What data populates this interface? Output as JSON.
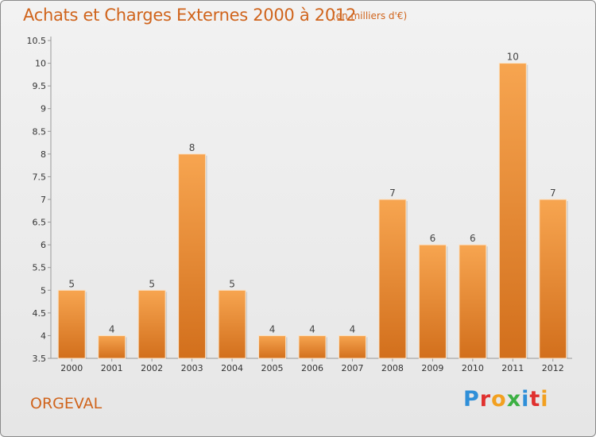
{
  "header": {
    "title": "Achats et Charges Externes 2000 à 2012",
    "subtitle": "(en milliers d'€)"
  },
  "footer": {
    "town": "ORGEVAL",
    "logo_text": "Proxiti",
    "logo_letters": [
      {
        "char": "P",
        "color": "#2f8fd8"
      },
      {
        "char": "r",
        "color": "#e0312f"
      },
      {
        "char": "o",
        "color": "#f2a020"
      },
      {
        "char": "x",
        "color": "#3cb043"
      },
      {
        "char": "i",
        "color": "#2f8fd8"
      },
      {
        "char": "t",
        "color": "#e0312f"
      },
      {
        "char": "i",
        "color": "#f2a020"
      }
    ]
  },
  "colors": {
    "bar_light": "#f7a550",
    "bar_dark": "#d26f1c",
    "accent": "#d0641c"
  },
  "chart_data": {
    "type": "bar",
    "categories": [
      "2000",
      "2001",
      "2002",
      "2003",
      "2004",
      "2005",
      "2006",
      "2007",
      "2008",
      "2009",
      "2010",
      "2011",
      "2012"
    ],
    "values": [
      5,
      4,
      5,
      8,
      5,
      4,
      4,
      4,
      7,
      6,
      6,
      10,
      7
    ],
    "data_labels": [
      "5",
      "4",
      "5",
      "8",
      "5",
      "4",
      "4",
      "4",
      "7",
      "6",
      "6",
      "10",
      "7"
    ],
    "y_ticks": [
      "3.5",
      "4",
      "4.5",
      "5",
      "5.5",
      "6",
      "6.5",
      "7",
      "7.5",
      "8",
      "8.5",
      "9",
      "9.5",
      "10",
      "10.5"
    ],
    "title": "Achats et Charges Externes 2000 à 2012",
    "ylim": [
      3.5,
      10.5
    ],
    "grid": false
  }
}
